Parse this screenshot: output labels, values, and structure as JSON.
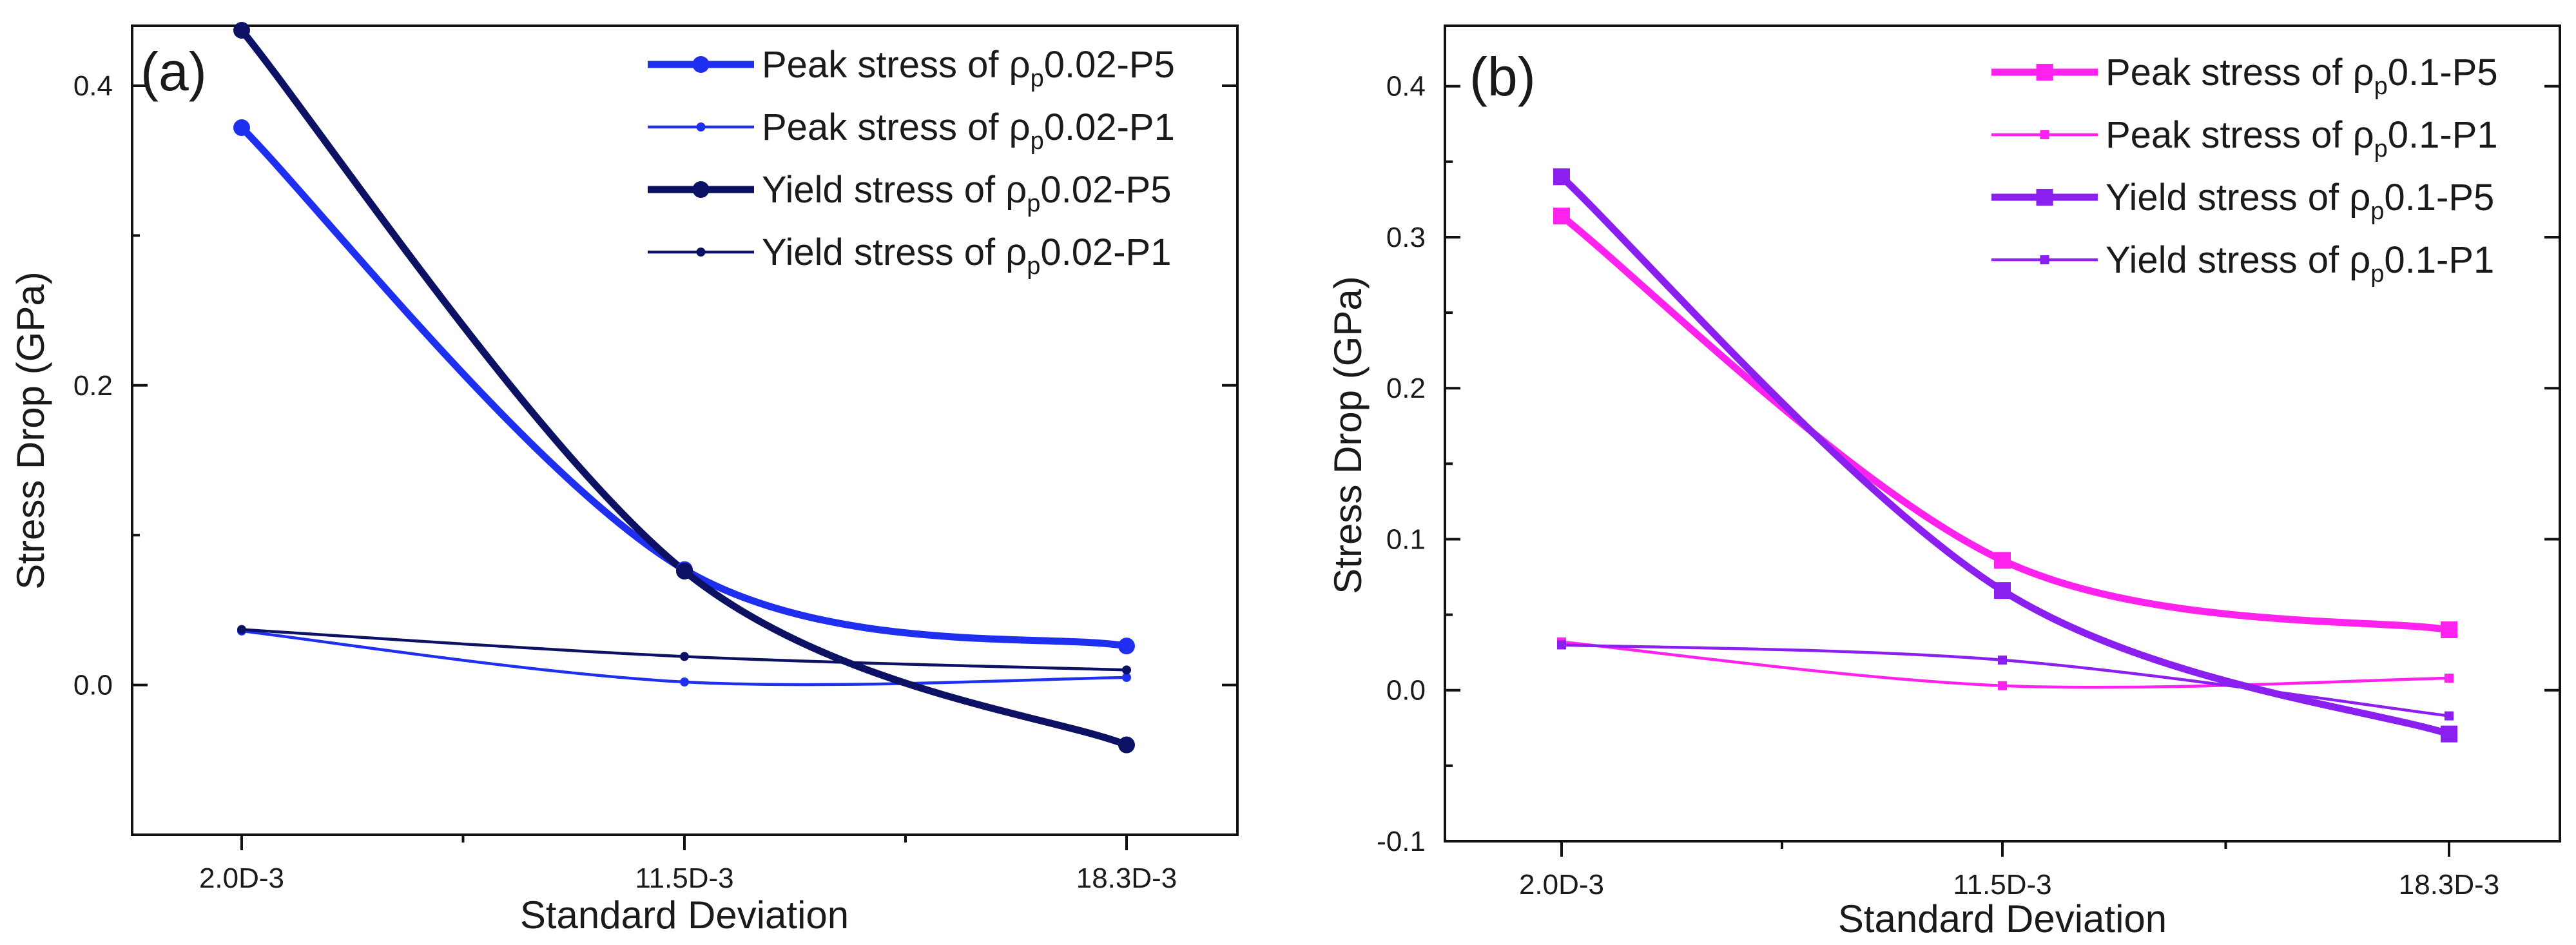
{
  "chart_data": [
    {
      "type": "line",
      "panel_label": "(a)",
      "xlabel": "Standard Deviation",
      "ylabel": "Stress Drop (GPa)",
      "categories": [
        "2.0D-3",
        "11.5D-3",
        "18.3D-3"
      ],
      "ylim": [
        -0.1,
        0.44
      ],
      "yticks": [
        0.0,
        0.2,
        0.4
      ],
      "ytick_labels": [
        "0.0",
        "0.2",
        "0.4"
      ],
      "legend_position": "top-right",
      "series": [
        {
          "name": "Peak stress of ρp0.02-P5",
          "legend_prefix": "Peak stress of ρ",
          "legend_sub": "p",
          "legend_suffix": "0.02-P5",
          "values": [
            0.372,
            0.077,
            0.026
          ],
          "color": "#1f2ff0",
          "weight": "thick",
          "marker": "circle"
        },
        {
          "name": "Peak stress of ρp0.02-P1",
          "legend_prefix": "Peak stress of ρ",
          "legend_sub": "p",
          "legend_suffix": "0.02-P1",
          "values": [
            0.036,
            0.002,
            0.005
          ],
          "color": "#1f2ff0",
          "weight": "thin",
          "marker": "circle"
        },
        {
          "name": "Yield stress of ρp0.02-P5",
          "legend_prefix": "Yield stress of ρ",
          "legend_sub": "p",
          "legend_suffix": "0.02-P5",
          "values": [
            0.437,
            0.076,
            -0.04
          ],
          "color": "#0c1163",
          "weight": "thick",
          "marker": "circle"
        },
        {
          "name": "Yield stress of ρp0.02-P1",
          "legend_prefix": "Yield stress of ρ",
          "legend_sub": "p",
          "legend_suffix": "0.02-P1",
          "values": [
            0.037,
            0.019,
            0.01
          ],
          "color": "#0c1163",
          "weight": "thin",
          "marker": "circle"
        }
      ]
    },
    {
      "type": "line",
      "panel_label": "(b)",
      "xlabel": "Standard Deviation",
      "ylabel": "Stress Drop (GPa)",
      "categories": [
        "2.0D-3",
        "11.5D-3",
        "18.3D-3"
      ],
      "ylim": [
        -0.1,
        0.44
      ],
      "yticks": [
        -0.1,
        0.0,
        0.1,
        0.2,
        0.3,
        0.4
      ],
      "ytick_labels": [
        "-0.1",
        "0.0",
        "0.1",
        "0.2",
        "0.3",
        "0.4"
      ],
      "legend_position": "top-right",
      "series": [
        {
          "name": "Peak stress of ρp0.1-P5",
          "legend_prefix": "Peak stress of ρ",
          "legend_sub": "p",
          "legend_suffix": "0.1-P5",
          "values": [
            0.314,
            0.086,
            0.04
          ],
          "color": "#ff22ee",
          "weight": "thick",
          "marker": "square"
        },
        {
          "name": "Peak stress of ρp0.1-P1",
          "legend_prefix": "Peak stress of ρ",
          "legend_sub": "p",
          "legend_suffix": "0.1-P1",
          "values": [
            0.032,
            0.003,
            0.008
          ],
          "color": "#ff22ee",
          "weight": "thin",
          "marker": "square"
        },
        {
          "name": "Yield stress of ρp0.1-P5",
          "legend_prefix": "Yield stress of ρ",
          "legend_sub": "p",
          "legend_suffix": "0.1-P5",
          "values": [
            0.34,
            0.066,
            -0.029
          ],
          "color": "#8a1ff0",
          "weight": "thick",
          "marker": "square"
        },
        {
          "name": "Yield stress of ρp0.1-P1",
          "legend_prefix": "Yield stress of ρ",
          "legend_sub": "p",
          "legend_suffix": "0.1-P1",
          "values": [
            0.03,
            0.02,
            -0.017
          ],
          "color": "#8a1ff0",
          "weight": "thin",
          "marker": "square"
        }
      ]
    }
  ]
}
